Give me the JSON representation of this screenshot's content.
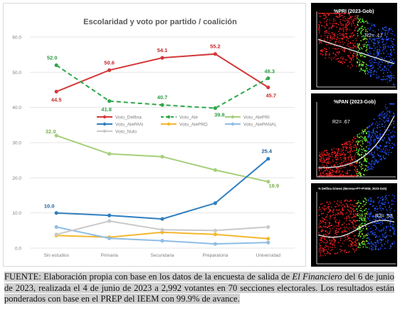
{
  "chart_data": {
    "type": "line",
    "title": "Escolaridad y voto por partido / coalición",
    "categories": [
      "Sin estudios",
      "Primaria",
      "Secundaria",
      "Preparatoria",
      "Universidad"
    ],
    "ylim": [
      0,
      60
    ],
    "yticks": [
      "0.0",
      "10.0",
      "20.0",
      "30.0",
      "40.0",
      "50.0",
      "60.0"
    ],
    "grid": true,
    "legend_position": "center",
    "series": [
      {
        "name": "Voto_Delfina",
        "values": [
          44.5,
          50.6,
          54.1,
          55.2,
          45.7
        ],
        "color": "#d33a3a",
        "dash": "solid",
        "marker": "circle",
        "labels": [
          "44.5",
          "50.6",
          "54.1",
          "55.2",
          "45.7"
        ],
        "label_color": "#c62828"
      },
      {
        "name": "Voto_Ale",
        "values": [
          52.0,
          41.8,
          40.7,
          39.8,
          48.3
        ],
        "color": "#2ea84a",
        "dash": "dashed",
        "marker": "circle",
        "labels": [
          "52.0",
          "41.8",
          "40.7",
          "39.8",
          "48.3"
        ],
        "label_color": "#2e9e45"
      },
      {
        "name": "Voto_AlePRI",
        "values": [
          32.0,
          26.8,
          26.0,
          22.2,
          18.9
        ],
        "color": "#a6cf7a",
        "dash": "solid",
        "marker": "circle",
        "labels": [
          "32.0",
          "",
          "",
          "",
          "18.9"
        ],
        "label_color": "#7fb24e"
      },
      {
        "name": "Voto_AlePAN",
        "values": [
          10.0,
          9.3,
          8.3,
          12.8,
          25.4
        ],
        "color": "#2f7fc1",
        "dash": "solid",
        "marker": "circle",
        "labels": [
          "10.0",
          "",
          "",
          "",
          "25.4"
        ],
        "label_color": "#1f5f9e"
      },
      {
        "name": "Voto_AlePRD",
        "values": [
          3.6,
          3.1,
          4.5,
          3.9,
          2.7
        ],
        "color": "#f3b82e",
        "dash": "solid",
        "marker": "circle",
        "labels": [
          "",
          "",
          "",
          "",
          ""
        ],
        "label_color": "#f3b82e"
      },
      {
        "name": "Voto_AlePANAL",
        "values": [
          6.0,
          2.8,
          2.1,
          1.2,
          1.6
        ],
        "color": "#8fbde6",
        "dash": "solid",
        "marker": "circle",
        "labels": [
          "",
          "",
          "",
          "",
          ""
        ],
        "label_color": "#8fbde6"
      },
      {
        "name": "Voto_Nulo",
        "values": [
          3.9,
          7.7,
          5.2,
          5.0,
          6.0
        ],
        "color": "#c9c9c9",
        "dash": "solid",
        "marker": "circle",
        "labels": [
          "",
          "",
          "",
          "",
          ""
        ],
        "label_color": "#b0b0b0"
      }
    ]
  },
  "side_panels": [
    {
      "id": "pri",
      "title": "%PRI (2023-Gob)",
      "r2": "R2= .17"
    },
    {
      "id": "pan",
      "title": "%PAN (2023-Gob)",
      "r2": "R2= .67"
    },
    {
      "id": "total",
      "title": "% Delfina Gómez (Morena+PT+PVEM, 2023-Gob)",
      "r2": "R2= .53"
    }
  ],
  "caption": {
    "prefix": "FUENTE: Elaboración propia con base en los datos de la encuesta de salida de ",
    "source": "El Financiero",
    "rest": " del 6 de junio de 2023, realizada el 4 de junio de 2023 a 2,992 votantes en 70 secciones electorales. Los resultados están ponderados con base en el PREP del IEEM con 99.9% de avance."
  }
}
